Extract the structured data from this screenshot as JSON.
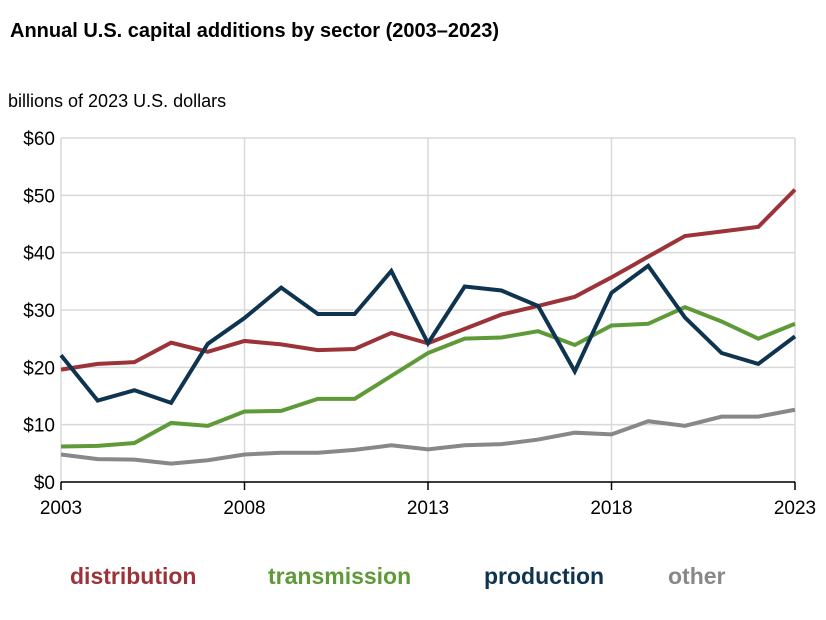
{
  "chart_data": {
    "type": "line",
    "title": "Annual U.S. capital additions by sector (2003–2023)",
    "ylabel": "billions of 2023 U.S. dollars",
    "xlabel": "",
    "x": [
      2003,
      2004,
      2005,
      2006,
      2007,
      2008,
      2009,
      2010,
      2011,
      2012,
      2013,
      2014,
      2015,
      2016,
      2017,
      2018,
      2019,
      2020,
      2021,
      2022,
      2023
    ],
    "xticks": [
      "2003",
      "2008",
      "2013",
      "2018",
      "2023"
    ],
    "yticks": [
      "$0",
      "$10",
      "$20",
      "$30",
      "$40",
      "$50",
      "$60"
    ],
    "ylim": [
      0,
      60
    ],
    "grid": true,
    "legend_position": "bottom",
    "series": [
      {
        "name": "distribution",
        "color": "#9b3339",
        "values": [
          19.6,
          20.6,
          20.9,
          24.3,
          22.7,
          24.6,
          24.0,
          23.0,
          23.2,
          26.0,
          24.2,
          26.7,
          29.2,
          30.7,
          32.3,
          35.7,
          39.3,
          42.9,
          43.7,
          44.5,
          51.0
        ]
      },
      {
        "name": "transmission",
        "color": "#5f9a38",
        "values": [
          6.2,
          6.3,
          6.8,
          10.3,
          9.8,
          12.3,
          12.4,
          14.5,
          14.5,
          18.5,
          22.5,
          25.0,
          25.2,
          26.3,
          23.9,
          27.3,
          27.6,
          30.5,
          28.0,
          25.0,
          27.6
        ]
      },
      {
        "name": "production",
        "color": "#0f3450",
        "values": [
          22.1,
          14.2,
          16.0,
          13.8,
          24.1,
          28.6,
          33.9,
          29.3,
          29.3,
          36.8,
          24.2,
          34.1,
          33.4,
          30.7,
          19.3,
          33.0,
          37.7,
          28.7,
          22.5,
          20.6,
          25.4
        ]
      },
      {
        "name": "other",
        "color": "#888888",
        "values": [
          4.8,
          4.0,
          3.9,
          3.2,
          3.8,
          4.8,
          5.1,
          5.1,
          5.6,
          6.4,
          5.7,
          6.4,
          6.6,
          7.4,
          8.6,
          8.3,
          10.6,
          9.8,
          11.4,
          11.4,
          12.6
        ]
      }
    ]
  }
}
